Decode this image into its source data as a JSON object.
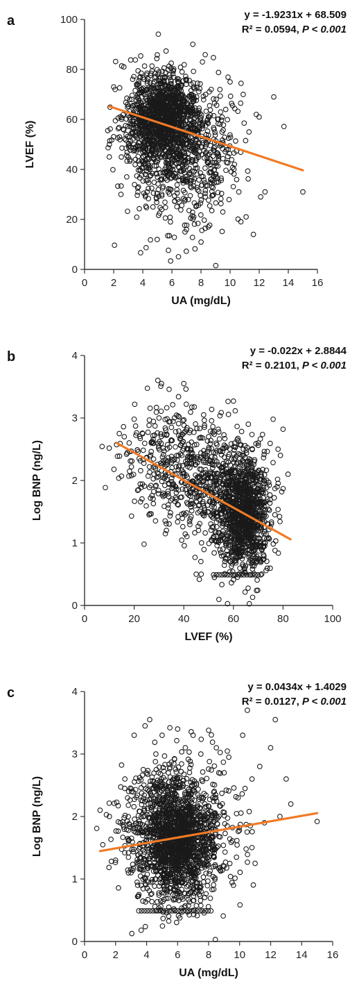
{
  "chart_data": [
    {
      "panel": "a",
      "type": "scatter",
      "xlabel": "UA (mg/dL)",
      "ylabel": "LVEF (%)",
      "xlim": [
        0,
        16
      ],
      "ylim": [
        0,
        100
      ],
      "xticks": [
        0,
        2,
        4,
        6,
        8,
        10,
        12,
        14,
        16
      ],
      "yticks": [
        0,
        20,
        40,
        60,
        80,
        100
      ],
      "equation": "y = -1.9231x + 68.509",
      "r2_text": "R² = 0.0594, ",
      "p_text": "P < 0.001",
      "fit": {
        "slope": -1.9231,
        "intercept": 68.509,
        "x_range": [
          1.7,
          15
        ]
      },
      "line_color": "#f07a26",
      "points": [
        [
          1.7,
          45
        ],
        [
          2,
          73
        ],
        [
          2.1,
          72
        ],
        [
          2.4,
          53
        ],
        [
          2.5,
          30
        ],
        [
          2.7,
          81
        ],
        [
          2.9,
          37
        ],
        [
          3.1,
          68
        ],
        [
          3.3,
          55
        ],
        [
          3.5,
          44
        ],
        [
          3.7,
          33
        ],
        [
          3.9,
          72
        ],
        [
          4.1,
          76
        ],
        [
          4.3,
          31
        ],
        [
          4.5,
          57
        ],
        [
          4.7,
          25
        ],
        [
          4.9,
          66
        ],
        [
          5.1,
          48
        ],
        [
          5.3,
          24
        ],
        [
          5.5,
          77
        ],
        [
          5.7,
          60
        ],
        [
          5.9,
          19
        ],
        [
          6.1,
          52
        ],
        [
          6.3,
          73
        ],
        [
          6.5,
          27
        ],
        [
          6.7,
          79
        ],
        [
          6.9,
          15
        ],
        [
          7.1,
          62
        ],
        [
          7.3,
          38
        ],
        [
          7.5,
          21
        ],
        [
          7.7,
          69
        ],
        [
          7.9,
          47
        ],
        [
          8.1,
          83
        ],
        [
          8.3,
          29
        ],
        [
          8.5,
          17
        ],
        [
          8.7,
          72
        ],
        [
          8.9,
          56
        ],
        [
          9.2,
          35
        ],
        [
          9.5,
          23
        ],
        [
          9.7,
          64
        ],
        [
          10,
          75
        ],
        [
          10.3,
          42
        ],
        [
          10.6,
          31
        ],
        [
          10.9,
          70
        ],
        [
          11.1,
          21
        ],
        [
          11.3,
          55
        ],
        [
          11.6,
          14
        ],
        [
          11.8,
          62
        ],
        [
          12.1,
          29
        ],
        [
          12.4,
          31
        ],
        [
          13,
          69
        ],
        [
          15,
          31
        ]
      ],
      "clusters": [
        {
          "cx": 5.6,
          "cy": 62,
          "sx": 1.1,
          "sy": 8,
          "n": 900
        },
        {
          "cx": 4.6,
          "cy": 55,
          "sx": 1.2,
          "sy": 11,
          "n": 420
        },
        {
          "cx": 6.8,
          "cy": 45,
          "sx": 1.6,
          "sy": 15,
          "n": 420
        },
        {
          "cx": 8.4,
          "cy": 48,
          "sx": 1.4,
          "sy": 13,
          "n": 160
        }
      ]
    },
    {
      "panel": "b",
      "type": "scatter",
      "xlabel": "LVEF (%)",
      "ylabel": "Log BNP (ng/L)",
      "xlim": [
        0,
        100
      ],
      "ylim": [
        0,
        4
      ],
      "xticks": [
        0,
        20,
        40,
        60,
        80,
        100
      ],
      "yticks": [
        0,
        1,
        2,
        3,
        4
      ],
      "equation": "y = -0.022x + 2.8844",
      "r2_text": "R² = 0.2101, ",
      "p_text": "P < 0.001",
      "fit": {
        "slope": -0.022,
        "intercept": 2.8844,
        "x_range": [
          13,
          83
        ]
      },
      "line_color": "#f07a26",
      "points": [
        [
          14,
          2.75
        ],
        [
          16,
          2.7
        ],
        [
          18,
          2.6
        ],
        [
          20,
          2.98
        ],
        [
          22,
          2.35
        ],
        [
          24,
          0.98
        ],
        [
          26,
          1.45
        ],
        [
          28,
          2.1
        ],
        [
          30,
          3.0
        ],
        [
          31,
          3.55
        ],
        [
          33,
          1.2
        ],
        [
          35,
          2.85
        ],
        [
          37,
          1.7
        ],
        [
          40,
          3.55
        ],
        [
          41,
          3.22
        ],
        [
          43,
          2.45
        ],
        [
          45,
          0.5
        ],
        [
          47,
          0.5
        ],
        [
          48,
          3.05
        ],
        [
          50,
          2.7
        ],
        [
          52,
          1.1
        ],
        [
          55,
          2.2
        ],
        [
          58,
          0.8
        ],
        [
          60,
          3.27
        ],
        [
          62,
          1.4
        ],
        [
          64,
          2.5
        ],
        [
          66,
          2.9
        ],
        [
          68,
          1.0
        ],
        [
          70,
          2.6
        ],
        [
          72,
          1.8
        ],
        [
          74,
          1.3
        ],
        [
          76,
          2.98
        ],
        [
          78,
          2.5
        ],
        [
          80,
          2.82
        ],
        [
          82,
          2.1
        ]
      ],
      "floor": {
        "y": 0.49,
        "x_from": 52,
        "x_to": 71
      },
      "clusters": [
        {
          "cx": 64,
          "cy": 1.45,
          "sx": 5.5,
          "sy": 0.45,
          "n": 1150
        },
        {
          "cx": 50,
          "cy": 2.0,
          "sx": 8,
          "sy": 0.5,
          "n": 380
        },
        {
          "cx": 32,
          "cy": 2.35,
          "sx": 9,
          "sy": 0.45,
          "n": 270
        }
      ]
    },
    {
      "panel": "c",
      "type": "scatter",
      "xlabel": "UA (mg/dL)",
      "ylabel": "Log BNP (ng/L)",
      "xlim": [
        0,
        16
      ],
      "ylim": [
        0,
        4
      ],
      "xticks": [
        0,
        2,
        4,
        6,
        8,
        10,
        12,
        14,
        16
      ],
      "yticks": [
        0,
        1,
        2,
        3,
        4
      ],
      "equation": "y = 0.0434x + 1.4029",
      "r2_text": "R² = 0.0127, ",
      "p_text": "P < 0.001",
      "fit": {
        "slope": 0.0434,
        "intercept": 1.4029,
        "x_range": [
          1,
          15
        ]
      },
      "line_color": "#f07a26",
      "points": [
        [
          1,
          2.1
        ],
        [
          1.6,
          2.0
        ],
        [
          2,
          1.3
        ],
        [
          2.3,
          1.9
        ],
        [
          2.6,
          2.6
        ],
        [
          3,
          1.1
        ],
        [
          3.2,
          3.3
        ],
        [
          3.5,
          0.75
        ],
        [
          3.9,
          3.45
        ],
        [
          4.2,
          3.55
        ],
        [
          4.6,
          3.0
        ],
        [
          5,
          3.3
        ],
        [
          5.5,
          3.42
        ],
        [
          6,
          3.4
        ],
        [
          6.5,
          3.1
        ],
        [
          7,
          3.3
        ],
        [
          7.5,
          3.0
        ],
        [
          8,
          3.38
        ],
        [
          8.5,
          3.1
        ],
        [
          9,
          2.7
        ],
        [
          9.3,
          2.95
        ],
        [
          9.6,
          0.9
        ],
        [
          9.9,
          2.3
        ],
        [
          10.2,
          3.3
        ],
        [
          10.5,
          3.7
        ],
        [
          10.8,
          2.6
        ],
        [
          11,
          1.25
        ],
        [
          11.3,
          2.8
        ],
        [
          11.6,
          1.9
        ],
        [
          12,
          3.1
        ],
        [
          12.3,
          3.55
        ],
        [
          12.6,
          2.0
        ],
        [
          13,
          2.6
        ],
        [
          13.3,
          2.2
        ],
        [
          15,
          1.92
        ]
      ],
      "floor": {
        "y": 0.49,
        "x_from": 3.5,
        "x_to": 8.3
      },
      "clusters": [
        {
          "cx": 6.0,
          "cy": 1.6,
          "sx": 1.1,
          "sy": 0.5,
          "n": 1200
        },
        {
          "cx": 5.0,
          "cy": 1.7,
          "sx": 1.4,
          "sy": 0.55,
          "n": 500
        },
        {
          "cx": 7.6,
          "cy": 1.8,
          "sx": 1.5,
          "sy": 0.55,
          "n": 280
        }
      ]
    }
  ]
}
